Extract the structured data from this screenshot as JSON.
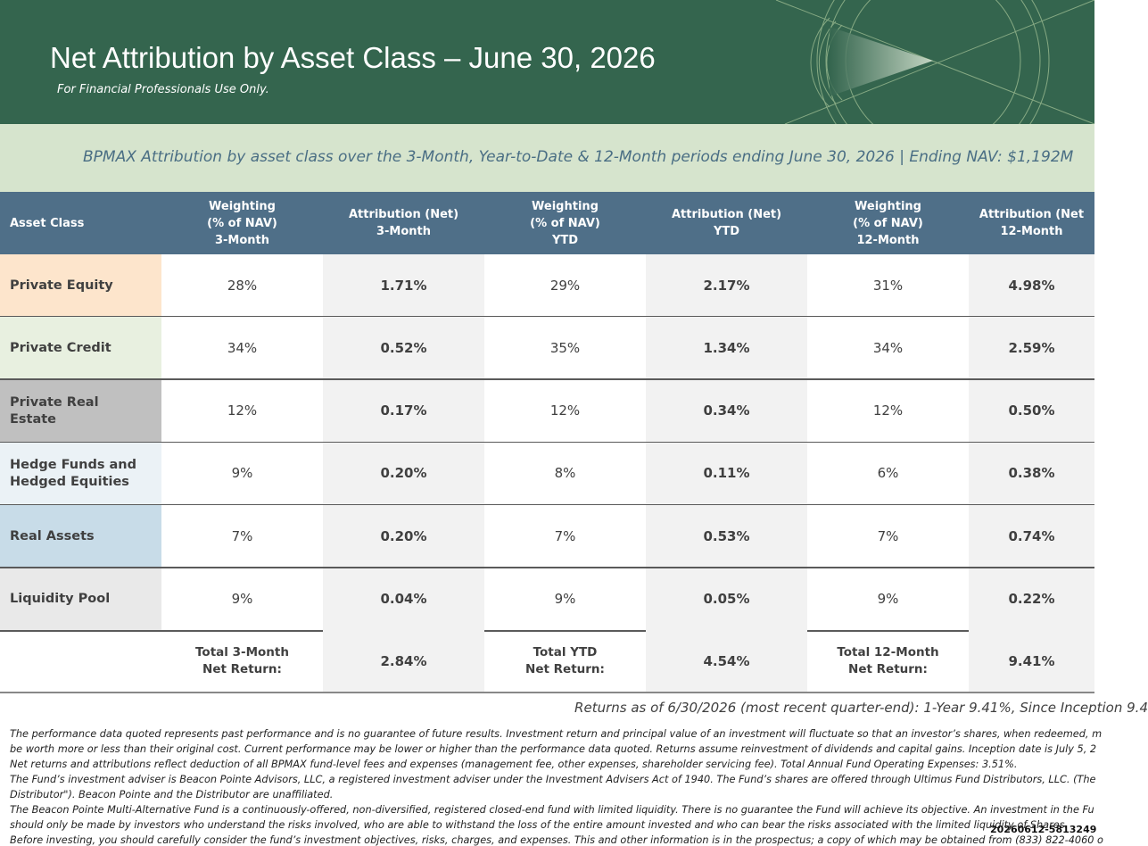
{
  "header": {
    "title": "Net Attribution by Asset Class – June 30, 2026",
    "subtitle": "For Financial Professionals Use Only."
  },
  "banner": {
    "text": "BPMAX Attribution by asset class over the 3-Month, Year-to-Date & 12-Month periods ending June 30, 2026 | Ending NAV: $1,192M"
  },
  "table": {
    "columns": [
      [
        "Asset Class"
      ],
      [
        "Weighting",
        "(% of NAV)",
        "3-Month"
      ],
      [
        "Attribution (Net)",
        "3-Month"
      ],
      [
        "Weighting",
        "(% of NAV)",
        "YTD"
      ],
      [
        "Attribution (Net)",
        "YTD"
      ],
      [
        "Weighting",
        "(% of NAV)",
        "12-Month"
      ],
      [
        "Attribution (Net",
        "12-Month"
      ]
    ],
    "rows": [
      [
        "Private Equity",
        "28%",
        "1.71%",
        "29%",
        "2.17%",
        "31%",
        "4.98%"
      ],
      [
        "Private Credit",
        "34%",
        "0.52%",
        "35%",
        "1.34%",
        "34%",
        "2.59%"
      ],
      [
        "Private Real Estate",
        "12%",
        "0.17%",
        "12%",
        "0.34%",
        "12%",
        "0.50%"
      ],
      [
        "Hedge Funds and Hedged Equities",
        "9%",
        "0.20%",
        "8%",
        "0.11%",
        "6%",
        "0.38%"
      ],
      [
        "Real Assets",
        "7%",
        "0.20%",
        "7%",
        "0.53%",
        "7%",
        "0.74%"
      ],
      [
        "Liquidity Pool",
        "9%",
        "0.04%",
        "9%",
        "0.05%",
        "9%",
        "0.22%"
      ]
    ],
    "total": [
      {
        "label": [
          "Total 3-Month",
          "Net Return:"
        ],
        "value": "2.84%"
      },
      {
        "label": [
          "Total YTD",
          "Net Return:"
        ],
        "value": "4.54%"
      },
      {
        "label": [
          "Total 12-Month",
          "Net Return:"
        ],
        "value": "9.41%"
      }
    ]
  },
  "returns_note": "Returns as of 6/30/2026 (most recent quarter-end): 1-Year 9.41%, Since Inception 9.4",
  "footnotes": [
    "The performance data quoted represents past performance and is no guarantee of future results. Investment return and principal value of an investment will fluctuate so that an investor’s shares, when redeemed, m",
    "be worth more or less than their original cost. Current performance may be lower or higher than the performance data quoted. Returns assume reinvestment of dividends and capital gains. Inception date is July 5, 2",
    "Net returns and attributions reflect deduction of all BPMAX fund-level fees and expenses (management fee, other expenses, shareholder servicing fee). Total Annual Fund Operating Expenses: 3.51%.",
    "The Fund’s investment adviser is Beacon Pointe Advisors, LLC, a registered investment adviser under the Investment Advisers Act of 1940. The Fund’s shares are offered through Ultimus Fund Distributors, LLC. (The",
    "Distributor\"). Beacon Pointe and the Distributor are unaffiliated.",
    "The Beacon Pointe Multi-Alternative Fund is a continuously-offered, non-diversified, registered closed-end fund with limited liquidity. There is no guarantee the Fund will achieve its objective. An investment in the Fu",
    "should only be made by investors who understand the risks involved, who are able to withstand the loss of the entire amount invested and who can bear the risks associated with the limited liquidity of Shares.",
    "Before investing, you should carefully consider the fund’s investment objectives, risks, charges, and expenses. This and other information is in the prospectus; a copy of which may be obtained from (833) 822-4060 o"
  ],
  "doc_code": "20260612-5813249"
}
